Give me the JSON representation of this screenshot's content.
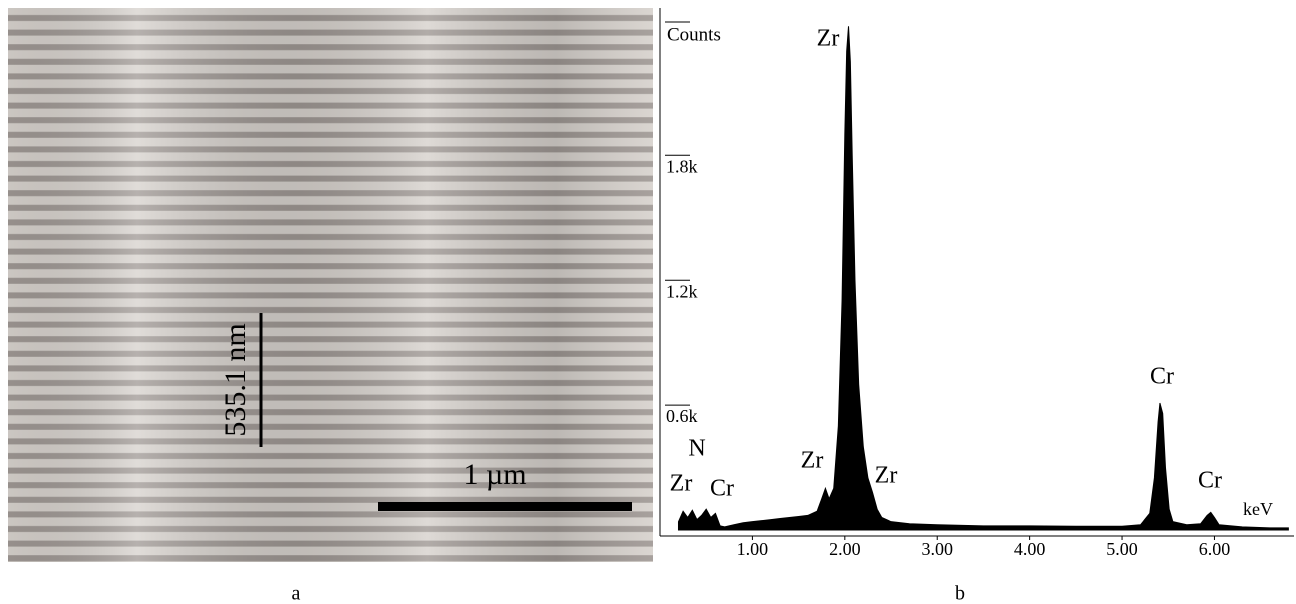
{
  "image_panel": {
    "label": "a",
    "scale_bar": "1 µm",
    "layer_bar": "535.1 nm"
  },
  "chart_data": {
    "type": "area",
    "label": "b",
    "y_label": "Counts",
    "x_label": "keV",
    "color": "#000000",
    "x": [
      0.2,
      0.25,
      0.3,
      0.35,
      0.4,
      0.45,
      0.5,
      0.55,
      0.6,
      0.65,
      0.7,
      0.8,
      0.9,
      1.0,
      1.1,
      1.2,
      1.3,
      1.4,
      1.5,
      1.6,
      1.7,
      1.75,
      1.79,
      1.83,
      1.88,
      1.93,
      1.97,
      2.0,
      2.02,
      2.04,
      2.06,
      2.08,
      2.11,
      2.15,
      2.2,
      2.25,
      2.3,
      2.35,
      2.4,
      2.5,
      2.7,
      3.0,
      3.5,
      4.0,
      4.5,
      5.0,
      5.2,
      5.3,
      5.35,
      5.39,
      5.41,
      5.44,
      5.47,
      5.51,
      5.55,
      5.7,
      5.85,
      5.92,
      5.96,
      6.0,
      6.05,
      6.3,
      6.6,
      6.8
    ],
    "values": [
      40,
      90,
      60,
      95,
      50,
      70,
      100,
      60,
      80,
      20,
      15,
      25,
      35,
      40,
      45,
      50,
      55,
      60,
      65,
      70,
      90,
      150,
      200,
      150,
      200,
      500,
      1100,
      1900,
      2300,
      2420,
      2250,
      1800,
      1200,
      700,
      400,
      250,
      180,
      100,
      60,
      40,
      30,
      25,
      20,
      20,
      18,
      18,
      25,
      80,
      250,
      520,
      610,
      560,
      300,
      100,
      40,
      25,
      30,
      70,
      85,
      60,
      25,
      15,
      10,
      10
    ],
    "xlim": [
      0,
      6.85
    ],
    "ylim": [
      0,
      2450
    ],
    "xticks": [
      {
        "value": 1,
        "label": "1.00"
      },
      {
        "value": 2,
        "label": "2.00"
      },
      {
        "value": 3,
        "label": "3.00"
      },
      {
        "value": 4,
        "label": "4.00"
      },
      {
        "value": 5,
        "label": "5.00"
      },
      {
        "value": 6,
        "label": "6.00"
      }
    ],
    "yticks": [
      {
        "value": 600,
        "label": "0.6k"
      },
      {
        "value": 1200,
        "label": "1.2k"
      },
      {
        "value": 1800,
        "label": "1.8k"
      }
    ],
    "annotations": [
      "Zr",
      "N",
      "Zr",
      "Cr",
      "Zr",
      "Zr",
      "Cr",
      "Cr"
    ]
  }
}
